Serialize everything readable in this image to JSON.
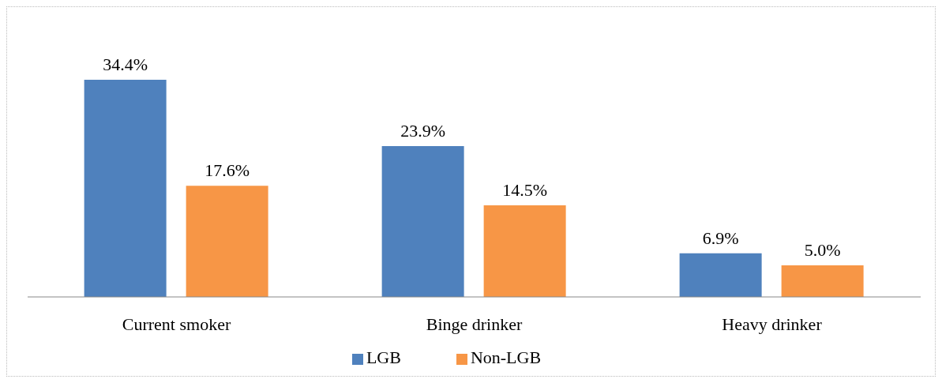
{
  "chart_data": {
    "type": "bar",
    "categories": [
      "Current smoker",
      "Binge drinker",
      "Heavy drinker"
    ],
    "series": [
      {
        "name": "LGB",
        "color": "#4f81bd",
        "values": [
          34.4,
          23.9,
          6.9
        ],
        "value_labels": [
          "34.4%",
          "23.9%",
          "6.9%"
        ]
      },
      {
        "name": "Non-LGB",
        "color": "#f79646",
        "values": [
          17.6,
          14.5,
          5.0
        ],
        "value_labels": [
          "17.6%",
          "14.5%",
          "5.0%"
        ]
      }
    ],
    "legend": "bottom",
    "grid": false
  }
}
